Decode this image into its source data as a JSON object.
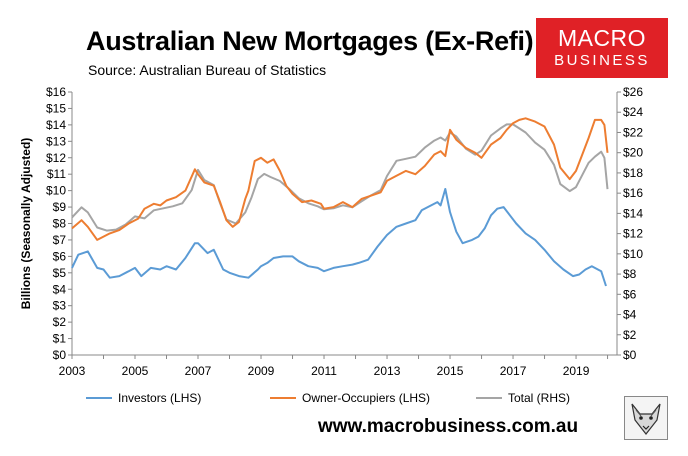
{
  "header": {
    "title": "Australian New Mortgages (Ex-Refi)",
    "subtitle": "Source: Australian Bureau of Statistics",
    "logo_top": "MACRO",
    "logo_bottom": "BUSINESS"
  },
  "footer": {
    "website": "www.macrobusiness.com.au"
  },
  "colors": {
    "investors": "#5b9bd5",
    "owner_occupiers": "#ed7d31",
    "total": "#a5a5a5",
    "logo_bg": "#e02126"
  },
  "chart_data": {
    "type": "line",
    "title": "Australian New Mortgages (Ex-Refi)",
    "ylabel": "Billions (Seasonally Adjusted)",
    "x_ticks": [
      "2003",
      "2005",
      "2007",
      "2009",
      "2011",
      "2013",
      "2015",
      "2017",
      "2019"
    ],
    "xlim": [
      2003,
      2020.3
    ],
    "y_left": {
      "ylim": [
        0,
        16
      ],
      "ticks": [
        "$0",
        "$1",
        "$2",
        "$3",
        "$4",
        "$5",
        "$6",
        "$7",
        "$8",
        "$9",
        "$10",
        "$11",
        "$12",
        "$13",
        "$14",
        "$15",
        "$16"
      ]
    },
    "y_right": {
      "ylim": [
        0,
        26
      ],
      "ticks": [
        "$0",
        "$2",
        "$4",
        "$6",
        "$8",
        "$10",
        "$12",
        "$14",
        "$16",
        "$18",
        "$20",
        "$22",
        "$24",
        "$26"
      ]
    },
    "legend": {
      "placement": "bottom"
    },
    "grid": false,
    "series": [
      {
        "name": "Investors (LHS)",
        "axis": "left",
        "x": [
          2003.0,
          2003.2,
          2003.5,
          2003.8,
          2004.0,
          2004.2,
          2004.5,
          2004.8,
          2005.0,
          2005.2,
          2005.5,
          2005.8,
          2006.0,
          2006.3,
          2006.6,
          2006.9,
          2007.0,
          2007.3,
          2007.5,
          2007.8,
          2008.0,
          2008.3,
          2008.6,
          2008.9,
          2009.0,
          2009.2,
          2009.4,
          2009.7,
          2010.0,
          2010.2,
          2010.5,
          2010.8,
          2011.0,
          2011.3,
          2011.6,
          2011.9,
          2012.1,
          2012.4,
          2012.7,
          2013.0,
          2013.3,
          2013.6,
          2013.9,
          2014.1,
          2014.4,
          2014.6,
          2014.7,
          2014.85,
          2015.0,
          2015.2,
          2015.4,
          2015.7,
          2015.9,
          2016.1,
          2016.3,
          2016.5,
          2016.7,
          2016.9,
          2017.1,
          2017.4,
          2017.7,
          2018.0,
          2018.3,
          2018.6,
          2018.9,
          2019.1,
          2019.3,
          2019.5,
          2019.8,
          2019.95
        ],
        "values": [
          5.3,
          6.1,
          6.3,
          5.3,
          5.2,
          4.7,
          4.8,
          5.1,
          5.3,
          4.8,
          5.3,
          5.2,
          5.4,
          5.2,
          5.9,
          6.8,
          6.8,
          6.2,
          6.4,
          5.2,
          5.0,
          4.8,
          4.7,
          5.2,
          5.4,
          5.6,
          5.9,
          6.0,
          6.0,
          5.7,
          5.4,
          5.3,
          5.1,
          5.3,
          5.4,
          5.5,
          5.6,
          5.8,
          6.6,
          7.3,
          7.8,
          8.0,
          8.2,
          8.8,
          9.1,
          9.3,
          9.1,
          10.1,
          8.7,
          7.5,
          6.8,
          7.0,
          7.2,
          7.7,
          8.5,
          8.9,
          9.0,
          8.5,
          8.0,
          7.4,
          7.0,
          6.4,
          5.7,
          5.2,
          4.8,
          4.9,
          5.2,
          5.4,
          5.1,
          4.2
        ]
      },
      {
        "name": "Owner-Occupiers (LHS)",
        "axis": "left",
        "x": [
          2003.0,
          2003.3,
          2003.5,
          2003.8,
          2004.2,
          2004.5,
          2004.8,
          2005.1,
          2005.3,
          2005.6,
          2005.8,
          2006.0,
          2006.3,
          2006.6,
          2006.9,
          2007.0,
          2007.2,
          2007.5,
          2007.7,
          2007.9,
          2008.1,
          2008.3,
          2008.5,
          2008.6,
          2008.8,
          2009.0,
          2009.2,
          2009.4,
          2009.6,
          2009.8,
          2010.0,
          2010.3,
          2010.6,
          2010.9,
          2011.0,
          2011.3,
          2011.6,
          2011.9,
          2012.2,
          2012.5,
          2012.8,
          2013.0,
          2013.3,
          2013.6,
          2013.9,
          2014.2,
          2014.5,
          2014.7,
          2014.85,
          2015.0,
          2015.2,
          2015.5,
          2015.8,
          2016.0,
          2016.3,
          2016.6,
          2016.8,
          2017.0,
          2017.2,
          2017.4,
          2017.7,
          2018.0,
          2018.3,
          2018.5,
          2018.8,
          2019.0,
          2019.2,
          2019.4,
          2019.6,
          2019.8,
          2019.9,
          2020.0
        ],
        "values": [
          7.7,
          8.2,
          7.8,
          7.0,
          7.4,
          7.6,
          8.0,
          8.3,
          8.9,
          9.2,
          9.1,
          9.4,
          9.6,
          10.0,
          11.3,
          11.0,
          10.5,
          10.3,
          9.3,
          8.2,
          7.8,
          8.1,
          9.5,
          10.0,
          11.8,
          12.0,
          11.7,
          11.9,
          11.2,
          10.3,
          9.8,
          9.3,
          9.4,
          9.2,
          8.9,
          9.0,
          9.3,
          9.0,
          9.5,
          9.7,
          9.9,
          10.6,
          10.9,
          11.2,
          11.0,
          11.5,
          12.2,
          12.4,
          12.1,
          13.7,
          13.1,
          12.6,
          12.3,
          12.0,
          12.8,
          13.2,
          13.7,
          14.1,
          14.3,
          14.4,
          14.2,
          13.9,
          12.8,
          11.4,
          10.7,
          11.2,
          12.2,
          13.2,
          14.3,
          14.3,
          14.0,
          12.3
        ]
      },
      {
        "name": "Total (RHS)",
        "axis": "right",
        "x": [
          2003.0,
          2003.3,
          2003.5,
          2003.8,
          2004.1,
          2004.4,
          2004.7,
          2005.0,
          2005.3,
          2005.6,
          2005.9,
          2006.2,
          2006.5,
          2006.8,
          2007.0,
          2007.2,
          2007.5,
          2007.7,
          2007.9,
          2008.2,
          2008.5,
          2008.7,
          2008.9,
          2009.1,
          2009.3,
          2009.6,
          2009.9,
          2010.2,
          2010.5,
          2010.8,
          2011.0,
          2011.3,
          2011.6,
          2011.9,
          2012.2,
          2012.5,
          2012.8,
          2013.0,
          2013.3,
          2013.6,
          2013.9,
          2014.2,
          2014.5,
          2014.7,
          2014.85,
          2015.0,
          2015.2,
          2015.5,
          2015.8,
          2016.0,
          2016.3,
          2016.6,
          2016.8,
          2017.0,
          2017.2,
          2017.4,
          2017.7,
          2018.0,
          2018.3,
          2018.5,
          2018.8,
          2019.0,
          2019.2,
          2019.4,
          2019.6,
          2019.8,
          2019.9,
          2020.0
        ],
        "values": [
          13.6,
          14.6,
          14.1,
          12.6,
          12.3,
          12.4,
          12.9,
          13.7,
          13.5,
          14.3,
          14.5,
          14.7,
          15.0,
          16.3,
          18.3,
          17.3,
          16.8,
          15.0,
          13.4,
          13.0,
          14.1,
          15.6,
          17.4,
          17.9,
          17.6,
          17.2,
          16.4,
          15.5,
          15.0,
          14.7,
          14.4,
          14.5,
          14.8,
          14.6,
          15.2,
          15.8,
          16.3,
          17.7,
          19.2,
          19.4,
          19.6,
          20.5,
          21.2,
          21.5,
          21.2,
          22.0,
          21.6,
          20.4,
          19.8,
          20.2,
          21.7,
          22.4,
          22.8,
          22.8,
          22.4,
          22.0,
          21.0,
          20.3,
          18.8,
          16.9,
          16.2,
          16.6,
          17.8,
          19.0,
          19.6,
          20.1,
          19.5,
          16.4
        ]
      }
    ]
  }
}
